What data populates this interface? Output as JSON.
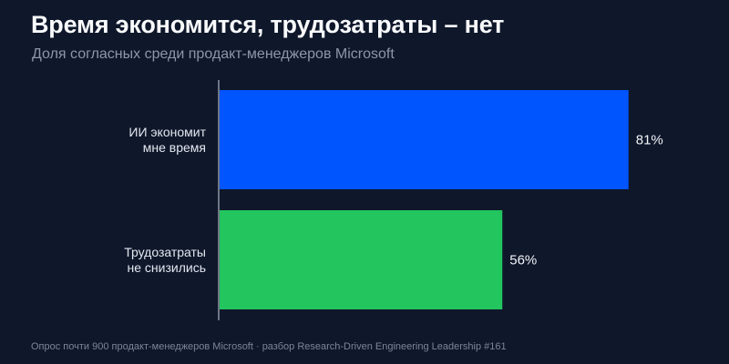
{
  "header": {
    "title": "Время экономится, трудозатраты – нет",
    "subtitle": "Доля согласных среди продакт-менеджеров Microsoft"
  },
  "chart_data": {
    "type": "bar",
    "orientation": "horizontal",
    "categories": [
      [
        "ИИ экономит",
        "мне время"
      ],
      [
        "Трудозатраты",
        "не снизились"
      ]
    ],
    "values": [
      81,
      56
    ],
    "value_labels": [
      "81%",
      "56%"
    ],
    "colors": [
      "#0055ff",
      "#22c55e"
    ],
    "xlim": [
      0,
      100
    ],
    "grid": false,
    "legend": "none"
  },
  "footer": {
    "source": "Опрос почти 900 продакт-менеджеров Microsoft · разбор Research-Driven Engineering Leadership #161"
  }
}
